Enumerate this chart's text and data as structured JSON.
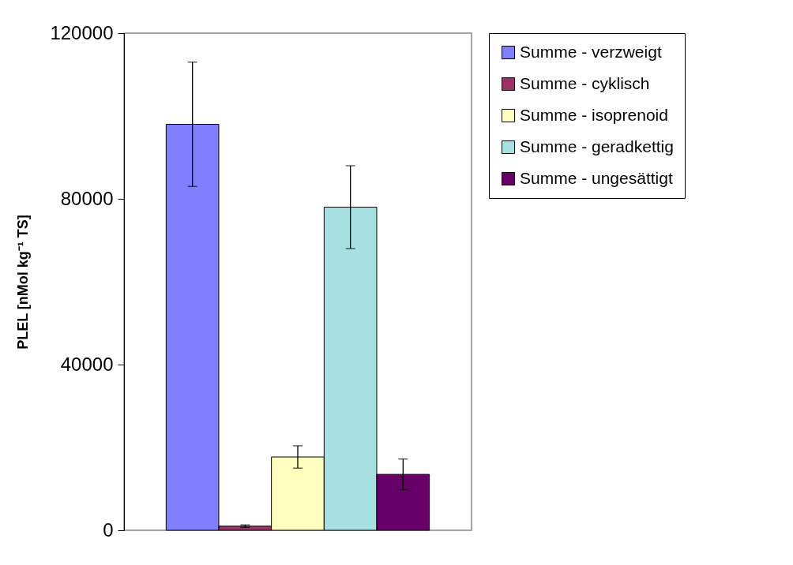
{
  "chart_data": {
    "type": "bar",
    "ylabel": "PLEL [nMol kg⁻¹ TS]",
    "categories": [
      null
    ],
    "ylim": [
      0,
      120000
    ],
    "yticks": [
      0,
      40000,
      80000,
      120000
    ],
    "legend": "right",
    "tick_labels": "y",
    "series": [
      {
        "name": "Summe - verzweigt",
        "color": "#8080ff",
        "values": [
          98000
        ],
        "errors": [
          15000
        ]
      },
      {
        "name": "Summe - cyklisch",
        "color": "#993366",
        "values": [
          1000
        ],
        "errors": [
          300
        ]
      },
      {
        "name": "Summe - isoprenoid",
        "color": "#ffffc0",
        "values": [
          17700
        ],
        "errors": [
          2700
        ]
      },
      {
        "name": "Summe - geradkettig",
        "color": "#a6e0e0",
        "values": [
          78000
        ],
        "errors": [
          10000
        ]
      },
      {
        "name": "Summe - ungesättigt",
        "color": "#660066",
        "values": [
          13500
        ],
        "errors": [
          3700
        ]
      }
    ]
  }
}
